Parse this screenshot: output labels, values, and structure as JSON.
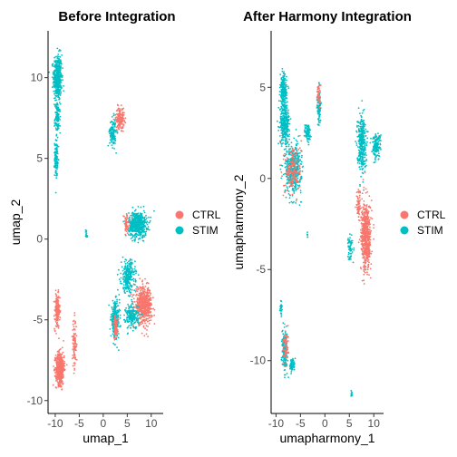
{
  "chart_data": [
    {
      "type": "scatter",
      "title": "Before Integration",
      "xlabel": "umap_1",
      "ylabel": "umap_2",
      "xlim": [
        -11.5,
        12.5
      ],
      "ylim": [
        -10.8,
        12.9
      ],
      "xticks": [
        -10,
        -5,
        0,
        5,
        10
      ],
      "yticks": [
        -10,
        -5,
        0,
        5,
        10
      ],
      "grid": false,
      "legend_position": "right",
      "legend": [
        {
          "name": "CTRL",
          "color": "#F8766D"
        },
        {
          "name": "STIM",
          "color": "#00BFC4"
        }
      ],
      "clusters": [
        {
          "group": "STIM",
          "center": [
            -9.5,
            10.0
          ],
          "spread": [
            0.8,
            1.3
          ],
          "n": 420
        },
        {
          "group": "STIM",
          "center": [
            -9.5,
            7.5
          ],
          "spread": [
            0.5,
            0.8
          ],
          "n": 120
        },
        {
          "group": "STIM",
          "center": [
            -9.8,
            5.0
          ],
          "spread": [
            0.3,
            1.0
          ],
          "n": 120
        },
        {
          "group": "CTRL",
          "center": [
            -9.6,
            -4.5
          ],
          "spread": [
            0.5,
            1.0
          ],
          "n": 160
        },
        {
          "group": "CTRL",
          "center": [
            -9.0,
            -8.0
          ],
          "spread": [
            0.8,
            0.9
          ],
          "n": 520
        },
        {
          "group": "CTRL",
          "center": [
            -6.0,
            -6.5
          ],
          "spread": [
            0.4,
            1.4
          ],
          "n": 100
        },
        {
          "group": "STIM",
          "center": [
            2.0,
            6.6
          ],
          "spread": [
            0.6,
            0.8
          ],
          "n": 140
        },
        {
          "group": "CTRL",
          "center": [
            3.5,
            7.5
          ],
          "spread": [
            0.8,
            0.6
          ],
          "n": 160
        },
        {
          "group": "STIM",
          "center": [
            -3.5,
            0.3
          ],
          "spread": [
            0.2,
            0.3
          ],
          "n": 14
        },
        {
          "group": "STIM",
          "center": [
            7.2,
            0.9
          ],
          "spread": [
            1.7,
            0.7
          ],
          "n": 600
        },
        {
          "group": "CTRL",
          "center": [
            4.8,
            0.9
          ],
          "spread": [
            0.5,
            0.6
          ],
          "n": 60
        },
        {
          "group": "STIM",
          "center": [
            5.2,
            -2.3
          ],
          "spread": [
            1.3,
            0.9
          ],
          "n": 260
        },
        {
          "group": "STIM",
          "center": [
            2.5,
            -5.0
          ],
          "spread": [
            0.8,
            1.0
          ],
          "n": 260
        },
        {
          "group": "CTRL",
          "center": [
            8.4,
            -4.1
          ],
          "spread": [
            1.6,
            1.0
          ],
          "n": 560
        },
        {
          "group": "STIM",
          "center": [
            6.0,
            -4.8
          ],
          "spread": [
            1.2,
            0.7
          ],
          "n": 200
        },
        {
          "group": "CTRL",
          "center": [
            2.6,
            -5.5
          ],
          "spread": [
            0.4,
            0.7
          ],
          "n": 80
        }
      ]
    },
    {
      "type": "scatter",
      "title": "After Harmony Integration",
      "xlabel": "umapharmony_1",
      "ylabel": "umapharmony_2",
      "xlim": [
        -11,
        12
      ],
      "ylim": [
        -12.9,
        8.1
      ],
      "xticks": [
        -10,
        -5,
        0,
        5,
        10
      ],
      "yticks": [
        -10,
        -5,
        0,
        5
      ],
      "grid": false,
      "legend_position": "right",
      "legend": [
        {
          "name": "CTRL",
          "color": "#F8766D"
        },
        {
          "name": "STIM",
          "color": "#00BFC4"
        }
      ],
      "clusters": [
        {
          "group": "STIM",
          "center": [
            -8.5,
            4.8
          ],
          "spread": [
            0.6,
            0.8
          ],
          "n": 220
        },
        {
          "group": "STIM",
          "center": [
            -8.2,
            3.0
          ],
          "spread": [
            0.9,
            1.0
          ],
          "n": 320
        },
        {
          "group": "STIM",
          "center": [
            -6.5,
            0.5
          ],
          "spread": [
            1.5,
            1.2
          ],
          "n": 440
        },
        {
          "group": "CTRL",
          "center": [
            -6.5,
            0.5
          ],
          "spread": [
            1.5,
            1.3
          ],
          "n": 180
        },
        {
          "group": "STIM",
          "center": [
            -3.5,
            2.5
          ],
          "spread": [
            0.6,
            0.5
          ],
          "n": 80
        },
        {
          "group": "STIM",
          "center": [
            -1.2,
            4.0
          ],
          "spread": [
            0.3,
            1.0
          ],
          "n": 120
        },
        {
          "group": "CTRL",
          "center": [
            -1.3,
            4.5
          ],
          "spread": [
            0.3,
            0.6
          ],
          "n": 40
        },
        {
          "group": "STIM",
          "center": [
            7.5,
            2.0
          ],
          "spread": [
            0.8,
            1.4
          ],
          "n": 340
        },
        {
          "group": "STIM",
          "center": [
            10.5,
            1.8
          ],
          "spread": [
            0.8,
            0.6
          ],
          "n": 160
        },
        {
          "group": "CTRL",
          "center": [
            6.9,
            -1.5
          ],
          "spread": [
            0.4,
            0.8
          ],
          "n": 60
        },
        {
          "group": "CTRL",
          "center": [
            8.4,
            -3.2
          ],
          "spread": [
            0.9,
            1.7
          ],
          "n": 600
        },
        {
          "group": "STIM",
          "center": [
            5.2,
            -3.8
          ],
          "spread": [
            0.4,
            0.7
          ],
          "n": 60
        },
        {
          "group": "STIM",
          "center": [
            -8.2,
            -9.5
          ],
          "spread": [
            0.5,
            0.9
          ],
          "n": 200
        },
        {
          "group": "CTRL",
          "center": [
            -8.0,
            -9.3
          ],
          "spread": [
            0.5,
            0.8
          ],
          "n": 70
        },
        {
          "group": "STIM",
          "center": [
            -6.7,
            -10.2
          ],
          "spread": [
            0.4,
            0.3
          ],
          "n": 90
        },
        {
          "group": "STIM",
          "center": [
            -9.0,
            -7.2
          ],
          "spread": [
            0.2,
            0.4
          ],
          "n": 25
        },
        {
          "group": "STIM",
          "center": [
            -3.6,
            -3.1
          ],
          "spread": [
            0.1,
            0.2
          ],
          "n": 6
        },
        {
          "group": "STIM",
          "center": [
            5.5,
            -11.8
          ],
          "spread": [
            0.15,
            0.2
          ],
          "n": 12
        }
      ]
    }
  ]
}
